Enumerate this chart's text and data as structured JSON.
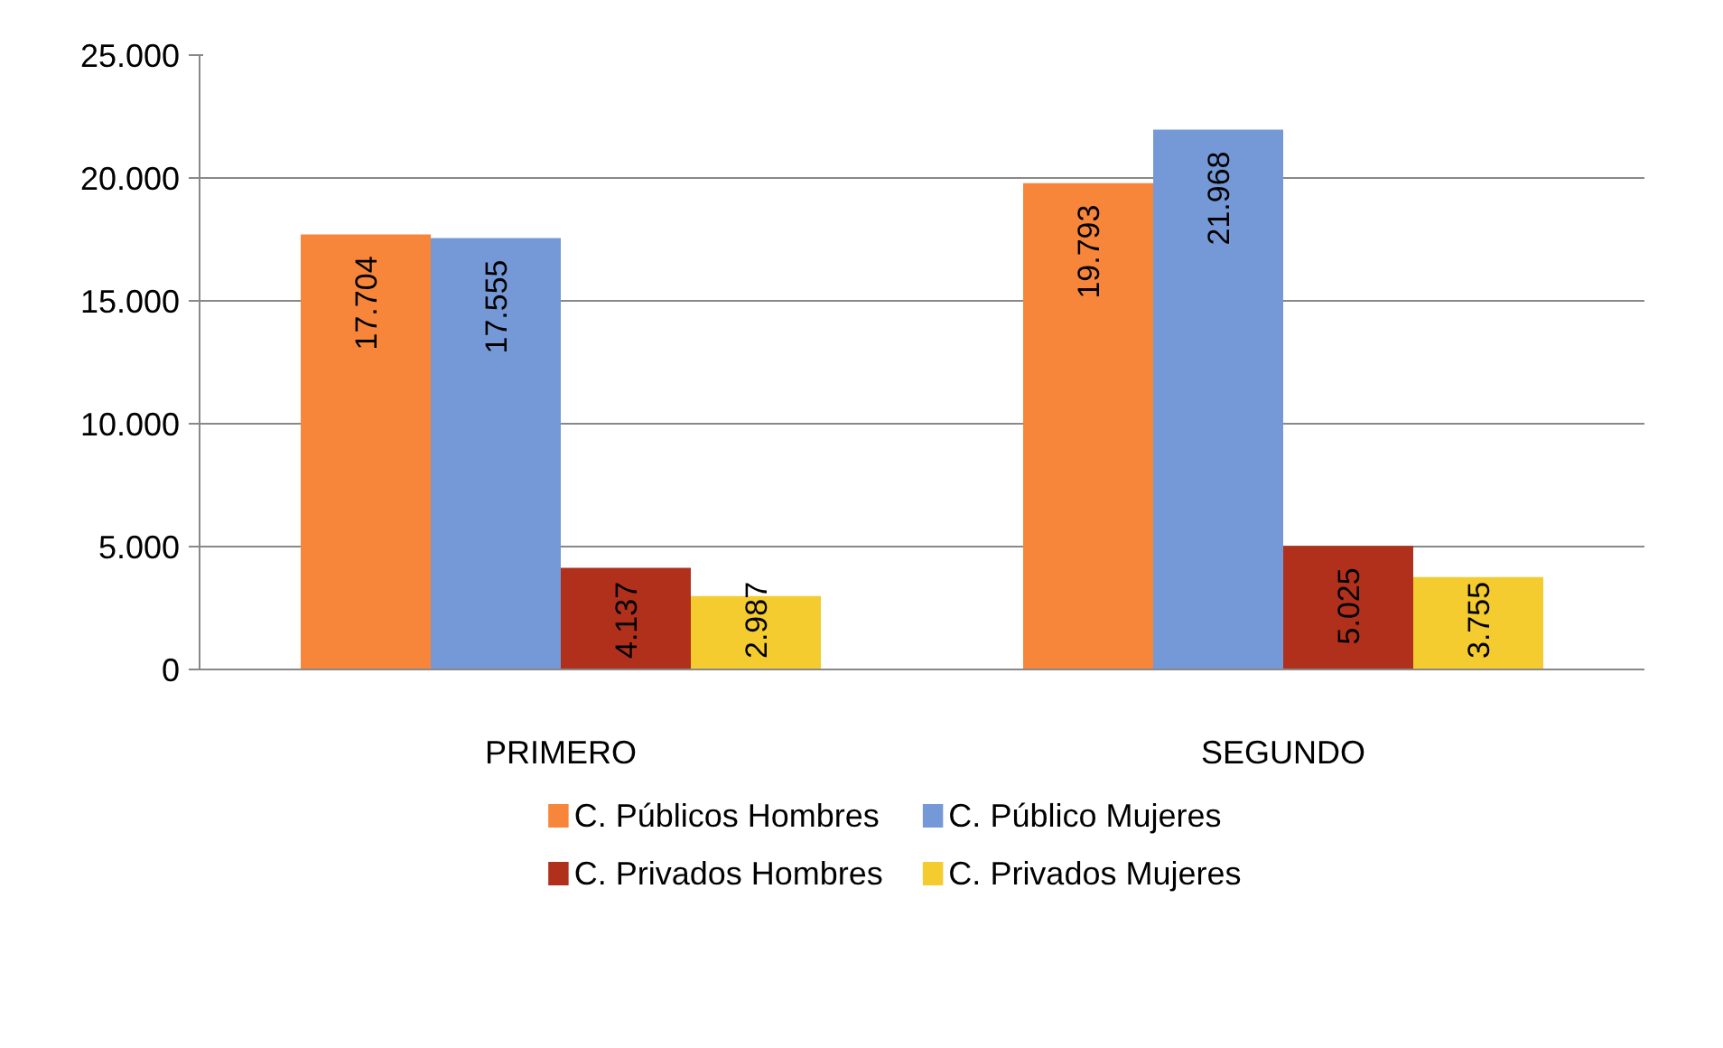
{
  "chart_data": {
    "type": "bar",
    "categories": [
      "PRIMERO",
      "SEGUNDO"
    ],
    "series": [
      {
        "name": "C. Públicos Hombres",
        "color": "#f7863a",
        "values": [
          17704,
          19793
        ],
        "value_labels": [
          "17.704",
          "19.793"
        ]
      },
      {
        "name": "C. Público Mujeres",
        "color": "#7499d6",
        "values": [
          17555,
          21968
        ],
        "value_labels": [
          "17.555",
          "21.968"
        ]
      },
      {
        "name": "C. Privados Hombres",
        "color": "#b0301c",
        "values": [
          4137,
          5025
        ],
        "value_labels": [
          "4.137",
          "5.025"
        ]
      },
      {
        "name": "C. Privados Mujeres",
        "color": "#f4cc30",
        "values": [
          2987,
          3755
        ],
        "value_labels": [
          "2.987",
          "3.755"
        ]
      }
    ],
    "ylim": [
      0,
      25000
    ],
    "yticks": [
      {
        "value": 0,
        "label": "0"
      },
      {
        "value": 5000,
        "label": "5.000"
      },
      {
        "value": 10000,
        "label": "10.000"
      },
      {
        "value": 15000,
        "label": "15.000"
      },
      {
        "value": 20000,
        "label": "20.000"
      },
      {
        "value": 25000,
        "label": "25.000"
      }
    ],
    "grid": "y",
    "legend": "bottom"
  }
}
